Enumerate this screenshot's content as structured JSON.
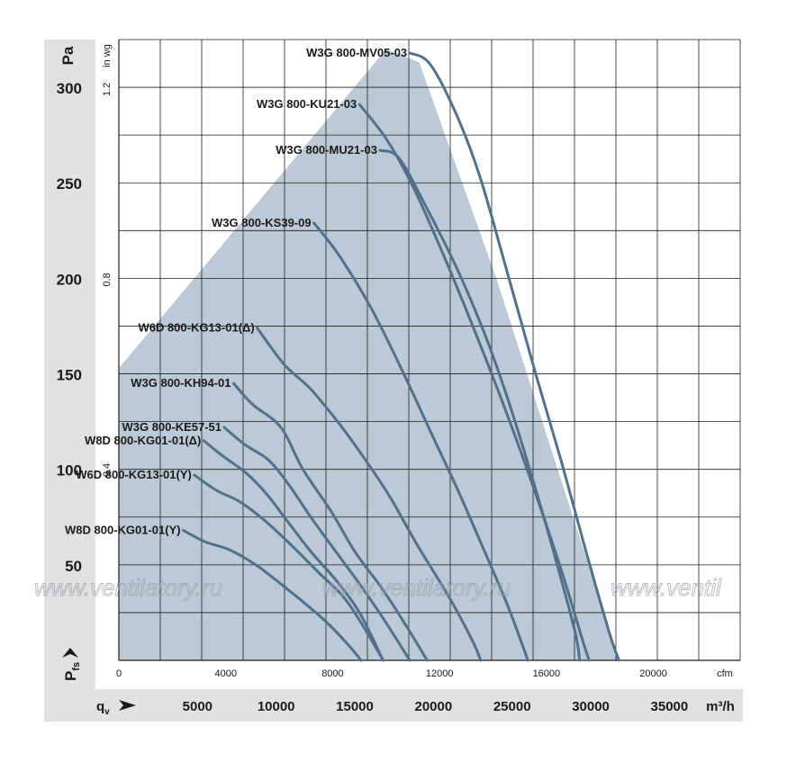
{
  "chart_data": {
    "type": "line",
    "y_axis": {
      "unit": "Pa",
      "symbol": "P",
      "symbol_sub": "fs",
      "ticks": [
        50,
        100,
        150,
        200,
        250,
        300
      ],
      "range": [
        0,
        325
      ]
    },
    "y_axis_secondary": {
      "unit": "in wg",
      "ticks": [
        0.4,
        0.8,
        1.2
      ]
    },
    "x_axis": {
      "unit": "m³/h",
      "symbol": "q",
      "symbol_sub": "v",
      "ticks": [
        5000,
        10000,
        15000,
        20000,
        25000,
        30000,
        35000
      ],
      "range": [
        0,
        39500
      ]
    },
    "x_axis_secondary": {
      "unit": "cfm",
      "ticks": [
        0,
        4000,
        8000,
        12000,
        16000,
        20000
      ]
    },
    "operating_area": [
      [
        0,
        153
      ],
      [
        17000,
        320
      ],
      [
        19100,
        313
      ],
      [
        24000,
        200
      ],
      [
        31800,
        0
      ],
      [
        0,
        0
      ]
    ],
    "series": [
      {
        "name": "W3G 800-MV05-03",
        "points": [
          [
            18500,
            318
          ],
          [
            19800,
            312
          ],
          [
            21500,
            285
          ],
          [
            23000,
            252
          ],
          [
            24800,
            200
          ],
          [
            26500,
            150
          ],
          [
            28100,
            105
          ],
          [
            29700,
            57
          ],
          [
            31200,
            14
          ],
          [
            31800,
            0
          ]
        ]
      },
      {
        "name": "W3G 800-KU21-03",
        "points": [
          [
            15300,
            291
          ],
          [
            17000,
            273
          ],
          [
            18700,
            248
          ],
          [
            20600,
            213
          ],
          [
            22500,
            175
          ],
          [
            24400,
            135
          ],
          [
            26300,
            92
          ],
          [
            28100,
            48
          ],
          [
            29500,
            10
          ],
          [
            29900,
            0
          ]
        ]
      },
      {
        "name": "W3G 800-MU21-03",
        "points": [
          [
            16600,
            267
          ],
          [
            17800,
            263
          ],
          [
            19500,
            238
          ],
          [
            21500,
            205
          ],
          [
            23300,
            170
          ],
          [
            24800,
            135
          ],
          [
            26300,
            95
          ],
          [
            27700,
            55
          ],
          [
            29000,
            15
          ],
          [
            29300,
            0
          ]
        ]
      },
      {
        "name": "W3G 800-KS39-09",
        "points": [
          [
            12400,
            229
          ],
          [
            14000,
            212
          ],
          [
            16000,
            185
          ],
          [
            18000,
            152
          ],
          [
            19800,
            120
          ],
          [
            21500,
            90
          ],
          [
            23200,
            58
          ],
          [
            24800,
            27
          ],
          [
            26000,
            0
          ]
        ]
      },
      {
        "name": "W6D 800-KG13-01(Δ)",
        "points": [
          [
            8800,
            174
          ],
          [
            10500,
            155
          ],
          [
            12200,
            142
          ],
          [
            14000,
            124
          ],
          [
            15500,
            107
          ],
          [
            17200,
            86
          ],
          [
            19000,
            60
          ],
          [
            21000,
            33
          ],
          [
            22500,
            10
          ],
          [
            23000,
            0
          ]
        ]
      },
      {
        "name": "W3G 800-KH94-01",
        "points": [
          [
            7300,
            145
          ],
          [
            8500,
            134
          ],
          [
            10300,
            122
          ],
          [
            11700,
            100
          ],
          [
            13500,
            78
          ],
          [
            15000,
            57
          ],
          [
            16700,
            38
          ],
          [
            18200,
            19
          ],
          [
            19600,
            0
          ]
        ]
      },
      {
        "name": "W3G 800-KE57-51",
        "points": [
          [
            6700,
            122
          ],
          [
            8000,
            113
          ],
          [
            9500,
            105
          ],
          [
            10800,
            92
          ],
          [
            12200,
            75
          ],
          [
            13700,
            58
          ],
          [
            15300,
            40
          ],
          [
            16800,
            22
          ],
          [
            18500,
            0
          ]
        ]
      },
      {
        "name": "W8D 800-KG01-01(Δ)",
        "points": [
          [
            5400,
            115
          ],
          [
            6600,
            107
          ],
          [
            8100,
            98
          ],
          [
            9400,
            87
          ],
          [
            10700,
            73
          ],
          [
            12200,
            57
          ],
          [
            13800,
            42
          ],
          [
            15300,
            25
          ],
          [
            16800,
            0
          ]
        ]
      },
      {
        "name": "W6D 800-KG13-01(Y)",
        "points": [
          [
            4800,
            97
          ],
          [
            6200,
            89
          ],
          [
            7700,
            83
          ],
          [
            9300,
            73
          ],
          [
            11000,
            60
          ],
          [
            12700,
            46
          ],
          [
            14300,
            33
          ],
          [
            15600,
            17
          ],
          [
            16800,
            0
          ]
        ]
      },
      {
        "name": "W8D 800-KG01-01(Y)",
        "points": [
          [
            4100,
            68
          ],
          [
            5500,
            62
          ],
          [
            7000,
            58
          ],
          [
            8700,
            50
          ],
          [
            10300,
            40
          ],
          [
            11800,
            30
          ],
          [
            13200,
            20
          ],
          [
            14600,
            8
          ],
          [
            15400,
            0
          ]
        ]
      }
    ]
  },
  "watermark": [
    "www.ventilatory.ru",
    "www.ventilatory.ru",
    "www.ventil"
  ],
  "colors": {
    "area": "#bcc9d6",
    "curve": "#52708c",
    "frame": "#e1e1e1",
    "grid": "#1f1f1f"
  }
}
